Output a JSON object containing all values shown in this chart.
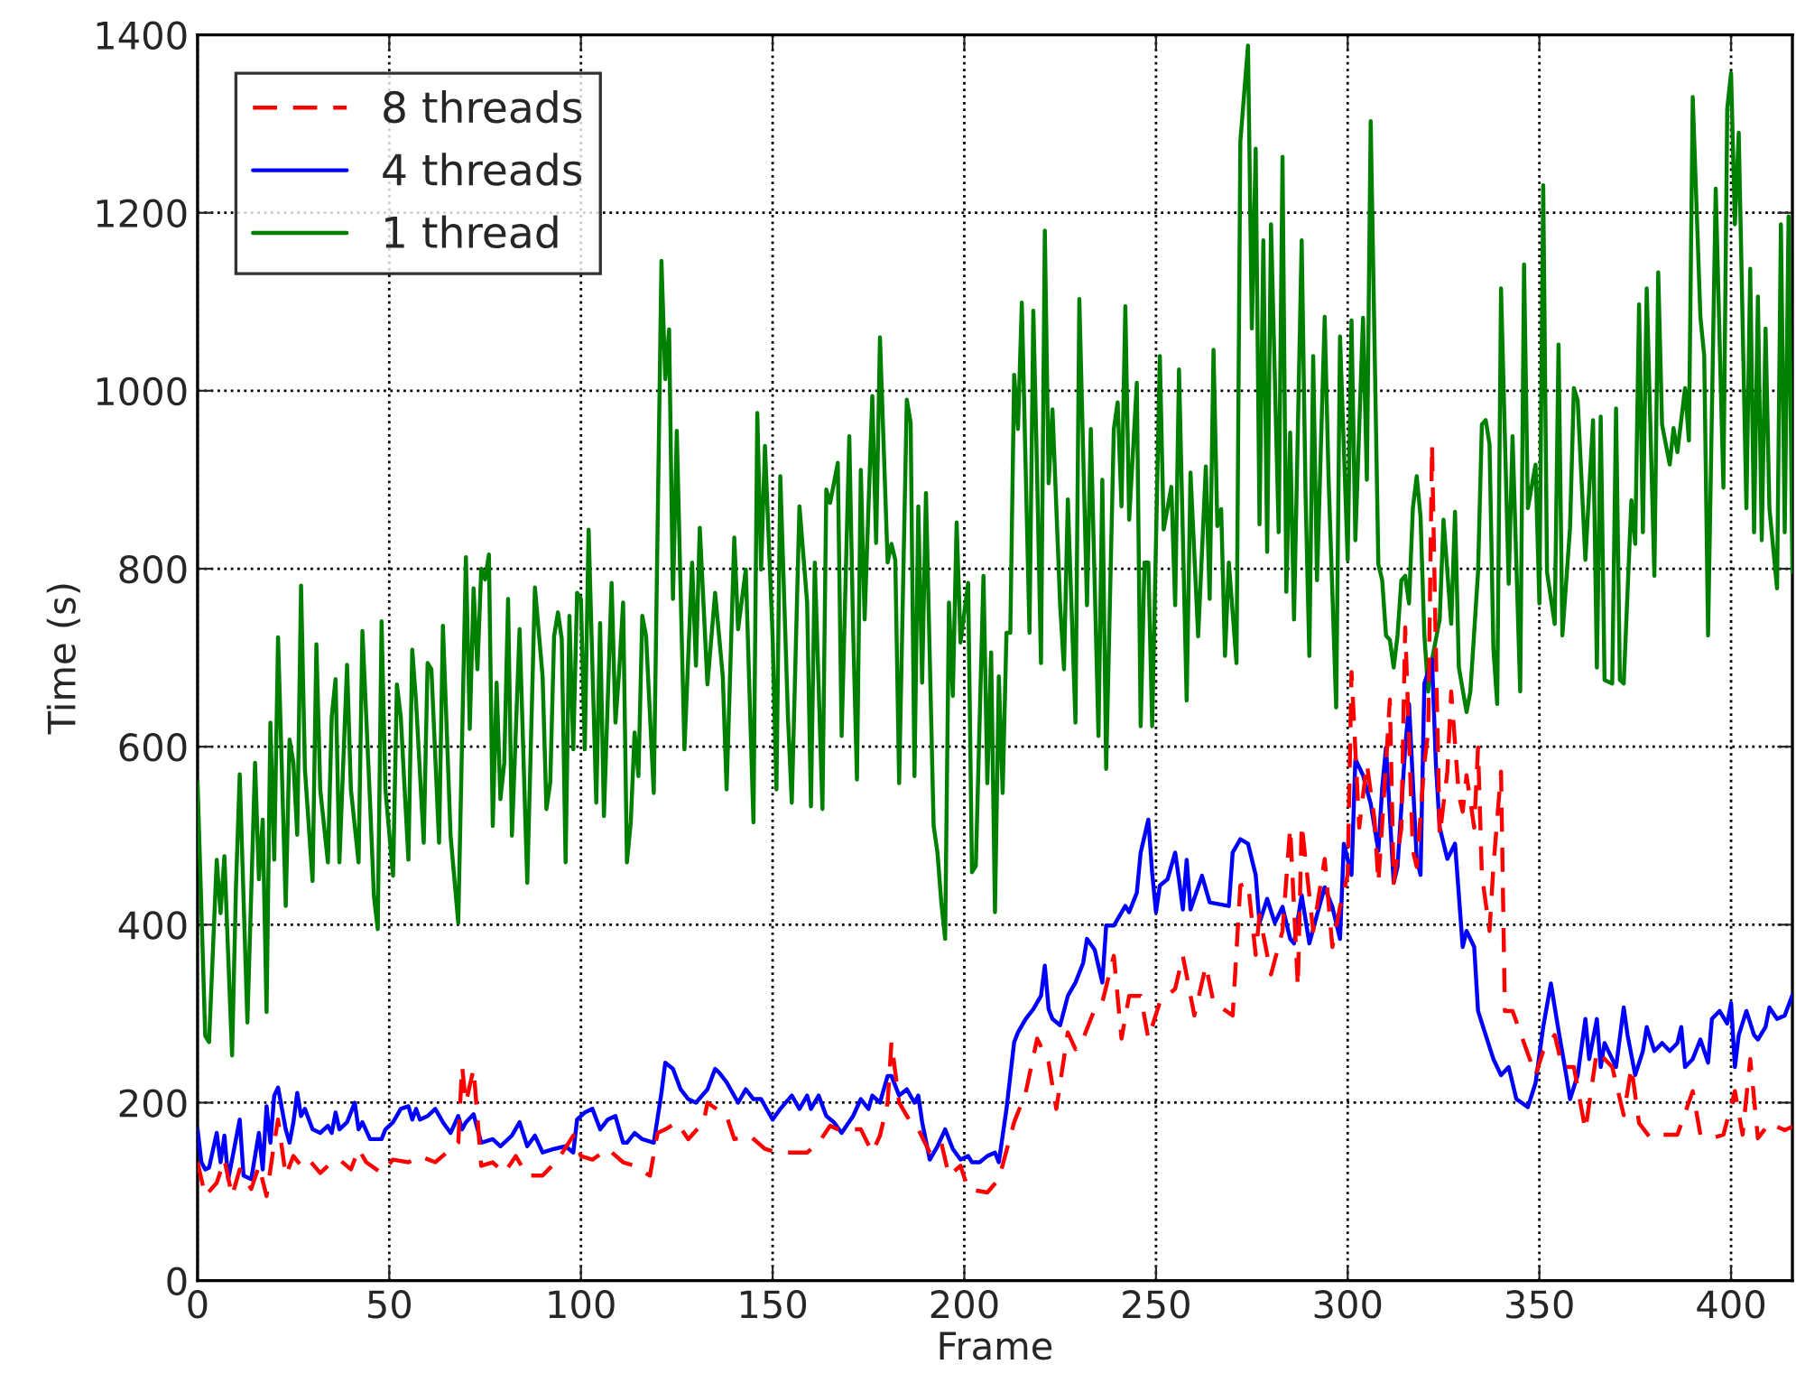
{
  "chart_data": {
    "type": "line",
    "xlabel": "Frame",
    "ylabel": "Time (s)",
    "xlim": [
      0,
      416
    ],
    "ylim": [
      0,
      1400
    ],
    "xticks": [
      0,
      50,
      100,
      150,
      200,
      250,
      300,
      350,
      400
    ],
    "yticks": [
      0,
      200,
      400,
      600,
      800,
      1000,
      1200,
      1400
    ],
    "grid": true,
    "legend": "top left",
    "series": [
      {
        "name": "8 threads",
        "color": "#ff0000",
        "line_style": "dashed",
        "x": [
          0,
          2,
          5,
          7,
          9,
          11,
          14,
          16,
          18,
          20,
          21,
          23,
          25,
          27,
          29,
          32,
          34,
          37,
          40,
          42,
          44,
          48,
          51,
          55,
          58,
          62,
          65,
          68,
          69,
          70,
          72,
          74,
          77,
          80,
          83,
          86,
          90,
          94,
          98,
          100,
          103,
          107,
          111,
          114,
          118,
          120,
          122,
          125,
          128,
          132,
          133,
          138,
          140,
          144,
          148,
          151,
          155,
          159,
          162,
          165,
          167,
          170,
          173,
          176,
          178,
          180,
          181,
          183,
          186,
          188,
          191,
          194,
          196,
          199,
          201,
          206,
          209,
          213,
          216,
          219,
          222,
          224,
          227,
          229,
          231,
          234,
          236,
          239,
          241,
          243,
          246,
          248,
          251,
          255,
          257,
          260,
          263,
          265,
          270,
          272,
          274,
          276,
          277,
          280,
          283,
          285,
          287,
          288,
          291,
          294,
          296,
          298,
          300,
          301,
          303,
          305,
          307,
          308,
          310,
          311,
          312,
          314,
          315,
          317,
          318,
          320,
          321,
          322,
          323,
          324,
          326,
          327,
          329,
          330,
          331,
          333,
          334,
          335,
          337,
          338,
          340,
          341,
          343,
          346,
          349,
          351,
          354,
          356,
          359,
          362,
          365,
          369,
          372,
          374,
          376,
          379,
          382,
          386,
          390,
          392,
          395,
          398,
          401,
          403,
          405,
          407,
          410,
          414,
          416
        ],
        "values": [
          133,
          95,
          110,
          136,
          95,
          125,
          103,
          129,
          95,
          155,
          181,
          118,
          140,
          129,
          136,
          121,
          129,
          136,
          125,
          148,
          133,
          121,
          136,
          133,
          140,
          133,
          144,
          155,
          241,
          200,
          238,
          129,
          133,
          121,
          140,
          118,
          118,
          136,
          163,
          140,
          136,
          148,
          133,
          129,
          118,
          166,
          170,
          178,
          159,
          178,
          200,
          185,
          159,
          163,
          148,
          144,
          144,
          144,
          155,
          174,
          170,
          170,
          170,
          144,
          163,
          200,
          268,
          200,
          178,
          170,
          144,
          155,
          118,
          129,
          103,
          99,
          114,
          178,
          211,
          272,
          245,
          193,
          279,
          260,
          272,
          305,
          313,
          365,
          272,
          320,
          320,
          272,
          313,
          328,
          365,
          298,
          354,
          313,
          298,
          444,
          447,
          366,
          411,
          344,
          393,
          509,
          330,
          513,
          393,
          474,
          375,
          420,
          456,
          684,
          509,
          581,
          518,
          447,
          581,
          653,
          447,
          509,
          734,
          483,
          465,
          581,
          617,
          940,
          707,
          500,
          572,
          662,
          545,
          527,
          568,
          509,
          599,
          456,
          393,
          465,
          572,
          303,
          303,
          267,
          231,
          258,
          276,
          240,
          240,
          169,
          258,
          240,
          186,
          240,
          177,
          160,
          164,
          164,
          213,
          164,
          160,
          164,
          213,
          164,
          249,
          160,
          177,
          169,
          173
        ]
      },
      {
        "name": "4 threads",
        "color": "#0000ff",
        "line_style": "solid",
        "x": [
          0,
          1,
          2,
          3,
          5,
          6,
          7,
          8,
          9,
          11,
          12,
          14,
          16,
          17,
          18,
          19,
          20,
          21,
          23,
          24,
          25,
          26,
          27,
          28,
          30,
          32,
          34,
          35,
          36,
          37,
          39,
          41,
          42,
          43,
          45,
          48,
          49,
          51,
          53,
          55,
          56,
          57,
          58,
          60,
          62,
          64,
          66,
          68,
          69,
          70,
          72,
          74,
          77,
          79,
          82,
          84,
          86,
          88,
          90,
          93,
          96,
          98,
          99,
          101,
          103,
          105,
          107,
          109,
          111,
          112,
          114,
          116,
          119,
          121,
          122,
          124,
          126,
          128,
          130,
          133,
          135,
          136,
          138,
          141,
          143,
          145,
          147,
          150,
          152,
          155,
          157,
          159,
          160,
          162,
          164,
          166,
          168,
          171,
          173,
          175,
          176,
          178,
          180,
          181,
          183,
          185,
          187,
          188,
          189,
          191,
          193,
          195,
          197,
          199,
          201,
          202,
          204,
          206,
          208,
          209,
          211,
          213,
          214,
          216,
          218,
          220,
          221,
          222,
          223,
          225,
          227,
          229,
          231,
          232,
          234,
          236,
          237,
          239,
          242,
          243,
          245,
          246,
          248,
          249,
          250,
          251,
          253,
          255,
          256,
          257,
          258,
          259,
          262,
          264,
          269,
          270,
          272,
          274,
          276,
          277,
          279,
          281,
          283,
          285,
          286,
          288,
          290,
          292,
          294,
          296,
          298,
          299,
          301,
          302,
          304,
          306,
          308,
          309,
          310,
          312,
          313,
          315,
          316,
          318,
          319,
          320,
          322,
          323,
          324,
          326,
          328,
          330,
          331,
          333,
          334,
          336,
          338,
          340,
          342,
          344,
          347,
          349,
          351,
          353,
          355,
          357,
          358,
          360,
          362,
          363,
          365,
          366,
          367,
          370,
          372,
          373,
          375,
          377,
          378,
          380,
          382,
          384,
          386,
          387,
          388,
          390,
          392,
          394,
          395,
          397,
          399,
          400,
          401,
          402,
          404,
          406,
          407,
          409,
          410,
          412,
          414,
          416
        ],
        "values": [
          170,
          133,
          125,
          127,
          166,
          133,
          163,
          114,
          136,
          181,
          118,
          114,
          166,
          125,
          196,
          155,
          208,
          217,
          170,
          155,
          178,
          211,
          185,
          193,
          170,
          166,
          174,
          166,
          189,
          170,
          178,
          200,
          170,
          178,
          159,
          159,
          170,
          178,
          193,
          196,
          181,
          193,
          181,
          185,
          193,
          178,
          166,
          185,
          170,
          178,
          187,
          155,
          159,
          151,
          163,
          178,
          151,
          163,
          144,
          148,
          151,
          144,
          181,
          189,
          193,
          170,
          181,
          185,
          155,
          155,
          166,
          159,
          155,
          211,
          245,
          238,
          215,
          204,
          200,
          215,
          238,
          234,
          223,
          200,
          215,
          204,
          204,
          181,
          193,
          208,
          193,
          208,
          193,
          208,
          185,
          178,
          166,
          185,
          204,
          193,
          208,
          200,
          230,
          230,
          208,
          215,
          200,
          208,
          178,
          136,
          151,
          170,
          148,
          136,
          140,
          133,
          133,
          140,
          144,
          133,
          193,
          268,
          279,
          294,
          305,
          320,
          354,
          305,
          294,
          287,
          320,
          335,
          357,
          384,
          372,
          335,
          399,
          399,
          421,
          414,
          436,
          481,
          518,
          458,
          414,
          444,
          451,
          481,
          451,
          417,
          473,
          417,
          455,
          425,
          421,
          481,
          496,
          491,
          456,
          402,
          429,
          402,
          420,
          384,
          379,
          433,
          379,
          411,
          442,
          420,
          384,
          491,
          456,
          586,
          568,
          536,
          483,
          554,
          599,
          447,
          465,
          599,
          648,
          474,
          456,
          671,
          698,
          581,
          509,
          474,
          491,
          375,
          393,
          375,
          303,
          276,
          249,
          231,
          240,
          204,
          195,
          222,
          285,
          334,
          281,
          231,
          204,
          231,
          294,
          249,
          294,
          240,
          267,
          240,
          307,
          276,
          231,
          258,
          285,
          258,
          267,
          258,
          267,
          285,
          240,
          249,
          271,
          245,
          294,
          303,
          289,
          312,
          240,
          276,
          303,
          276,
          271,
          285,
          307,
          294,
          298,
          321
        ]
      },
      {
        "name": "1 thread",
        "color": "#008000",
        "line_style": "solid",
        "x": [
          0,
          2,
          3,
          5,
          6,
          7,
          9,
          10,
          11,
          13,
          15,
          16,
          17,
          18,
          19,
          20,
          21,
          23,
          24,
          25,
          26,
          27,
          28,
          30,
          31,
          32,
          34,
          35,
          36,
          37,
          39,
          40,
          42,
          43,
          45,
          46,
          47,
          48,
          49,
          51,
          52,
          53,
          55,
          56,
          57,
          59,
          60,
          61,
          63,
          64,
          66,
          68,
          70,
          71,
          72,
          73,
          74,
          75,
          76,
          77,
          78,
          79,
          80,
          81,
          82,
          84,
          86,
          88,
          90,
          91,
          92,
          93,
          94,
          95,
          96,
          97,
          98,
          99,
          100,
          101,
          102,
          104,
          105,
          106,
          108,
          109,
          110,
          111,
          112,
          113,
          114,
          115,
          116,
          117,
          119,
          121,
          122,
          123,
          124,
          125,
          127,
          129,
          130,
          131,
          133,
          135,
          137,
          138,
          140,
          141,
          143,
          145,
          146,
          147,
          148,
          150,
          151,
          152,
          154,
          155,
          157,
          159,
          160,
          161,
          163,
          164,
          165,
          167,
          168,
          170,
          171,
          172,
          173,
          174,
          176,
          177,
          178,
          180,
          181,
          182,
          183,
          185,
          186,
          187,
          188,
          189,
          190,
          192,
          193,
          194,
          195,
          196,
          197,
          198,
          199,
          201,
          202,
          203,
          205,
          206,
          207,
          208,
          209,
          210,
          211,
          212,
          213,
          214,
          215,
          217,
          218,
          219,
          220,
          221,
          222,
          223,
          225,
          226,
          227,
          229,
          230,
          232,
          233,
          235,
          236,
          237,
          239,
          240,
          241,
          242,
          243,
          245,
          246,
          247,
          248,
          249,
          251,
          252,
          254,
          255,
          256,
          258,
          259,
          261,
          263,
          264,
          265,
          266,
          267,
          268,
          269,
          271,
          272,
          274,
          275,
          276,
          277,
          278,
          279,
          280,
          282,
          283,
          284,
          285,
          286,
          288,
          289,
          290,
          291,
          292,
          294,
          295,
          297,
          298,
          300,
          301,
          302,
          304,
          305,
          306,
          308,
          309,
          310,
          311,
          312,
          313,
          314,
          315,
          316,
          317,
          318,
          319,
          320,
          321,
          322,
          324,
          325,
          327,
          328,
          329,
          331,
          332,
          334,
          335,
          336,
          337,
          338,
          339,
          340,
          342,
          343,
          345,
          346,
          347,
          349,
          350,
          351,
          352,
          354,
          355,
          356,
          358,
          359,
          360,
          362,
          364,
          365,
          366,
          367,
          369,
          370,
          371,
          372,
          374,
          375,
          376,
          377,
          378,
          380,
          381,
          382,
          384,
          385,
          386,
          388,
          389,
          390,
          392,
          393,
          394,
          396,
          398,
          399,
          400,
          401,
          402,
          404,
          405,
          406,
          407,
          408,
          409,
          410,
          412,
          413,
          414,
          415,
          416
        ],
        "values": [
          560,
          275,
          268,
          473,
          413,
          477,
          253,
          440,
          569,
          290,
          582,
          451,
          518,
          302,
          627,
          473,
          723,
          421,
          608,
          582,
          501,
          781,
          575,
          449,
          715,
          552,
          470,
          634,
          676,
          470,
          692,
          552,
          470,
          730,
          537,
          432,
          395,
          741,
          552,
          455,
          670,
          634,
          473,
          709,
          650,
          492,
          694,
          687,
          492,
          736,
          500,
          402,
          813,
          620,
          778,
          687,
          800,
          788,
          816,
          511,
          672,
          541,
          582,
          766,
          500,
          732,
          447,
          779,
          679,
          530,
          560,
          724,
          751,
          721,
          470,
          747,
          597,
          773,
          766,
          597,
          844,
          537,
          739,
          522,
          784,
          627,
          687,
          762,
          470,
          515,
          616,
          567,
          747,
          724,
          548,
          1146,
          1013,
          1069,
          766,
          955,
          597,
          807,
          691,
          846,
          670,
          773,
          679,
          552,
          835,
          732,
          799,
          515,
          975,
          799,
          938,
          724,
          552,
          904,
          634,
          537,
          870,
          762,
          533,
          807,
          530,
          889,
          874,
          919,
          612,
          949,
          732,
          563,
          911,
          743,
          994,
          829,
          1060,
          807,
          828,
          810,
          559,
          990,
          964,
          567,
          870,
          672,
          885,
          511,
          481,
          425,
          384,
          762,
          657,
          852,
          717,
          784,
          459,
          466,
          792,
          559,
          706,
          414,
          679,
          548,
          728,
          728,
          1018,
          957,
          1099,
          728,
          1090,
          904,
          694,
          1180,
          896,
          979,
          759,
          687,
          878,
          627,
          1103,
          759,
          957,
          612,
          900,
          575,
          957,
          987,
          870,
          1095,
          855,
          1009,
          623,
          807,
          807,
          623,
          1039,
          844,
          892,
          759,
          1024,
          652,
          908,
          724,
          915,
          766,
          1046,
          848,
          867,
          702,
          807,
          694,
          1280,
          1388,
          1070,
          1272,
          850,
          1169,
          819,
          1187,
          841,
          1263,
          774,
          953,
          743,
          1169,
          886,
          702,
          1039,
          787,
          1083,
          904,
          644,
          1061,
          810,
          1079,
          832,
          1082,
          900,
          1303,
          805,
          787,
          725,
          720,
          689,
          725,
          787,
          792,
          761,
          868,
          904,
          859,
          725,
          662,
          698,
          743,
          855,
          738,
          864,
          689,
          639,
          662,
          796,
          962,
          967,
          940,
          711,
          648,
          1115,
          783,
          949,
          662,
          1142,
          868,
          917,
          761,
          1231,
          796,
          738,
          1052,
          725,
          846,
          1003,
          989,
          810,
          967,
          689,
          971,
          675,
          671,
          980,
          675,
          671,
          877,
          828,
          1097,
          841,
          1115,
          792,
          1133,
          962,
          917,
          958,
          931,
          1003,
          944,
          1330,
          1083,
          1039,
          725,
          1227,
          891,
          1317,
          1357,
          1187,
          1290,
          868,
          1137,
          841,
          1106,
          832,
          1070,
          868,
          778,
          1187,
          841,
          1196,
          796
        ]
      }
    ]
  }
}
